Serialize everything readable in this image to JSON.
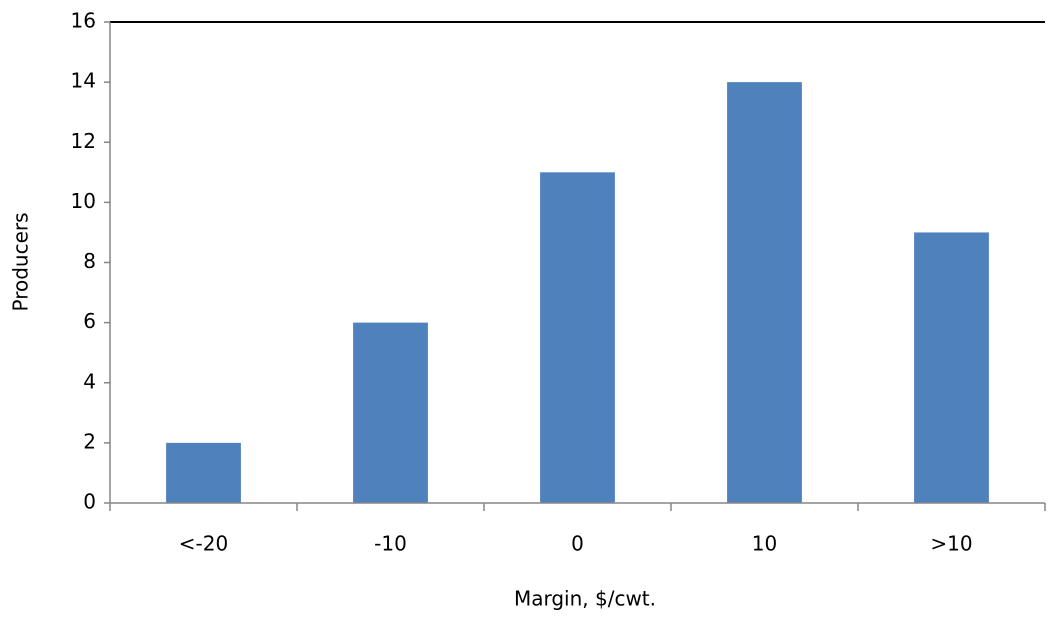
{
  "chart_data": {
    "type": "bar",
    "x_label": "Margin, $/cwt.",
    "y_label": "Producers",
    "categories": [
      "<-20",
      "-10",
      "0",
      "10",
      ">10"
    ],
    "values": [
      2,
      6,
      11,
      14,
      9
    ],
    "color": "#4f81bd",
    "ylim": [
      0,
      16
    ],
    "yticks": [
      0,
      2,
      4,
      6,
      8,
      10,
      12,
      14,
      16
    ],
    "grid": false
  }
}
